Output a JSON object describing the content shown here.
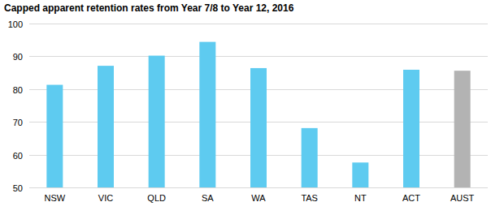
{
  "chart_data": {
    "type": "bar",
    "title": "Capped apparent retention rates from Year 7/8 to Year 12, 2016",
    "categories": [
      "NSW",
      "VIC",
      "QLD",
      "SA",
      "WA",
      "TAS",
      "NT",
      "ACT",
      "AUST"
    ],
    "values": [
      81.3,
      87.1,
      90.2,
      94.4,
      86.4,
      68.1,
      57.6,
      85.9,
      85.6
    ],
    "colors": [
      "#5ecbf0",
      "#5ecbf0",
      "#5ecbf0",
      "#5ecbf0",
      "#5ecbf0",
      "#5ecbf0",
      "#5ecbf0",
      "#5ecbf0",
      "#b3b3b3"
    ],
    "ylim": [
      50,
      100
    ],
    "yticks": [
      50,
      60,
      70,
      80,
      90,
      100
    ],
    "grid": true
  }
}
